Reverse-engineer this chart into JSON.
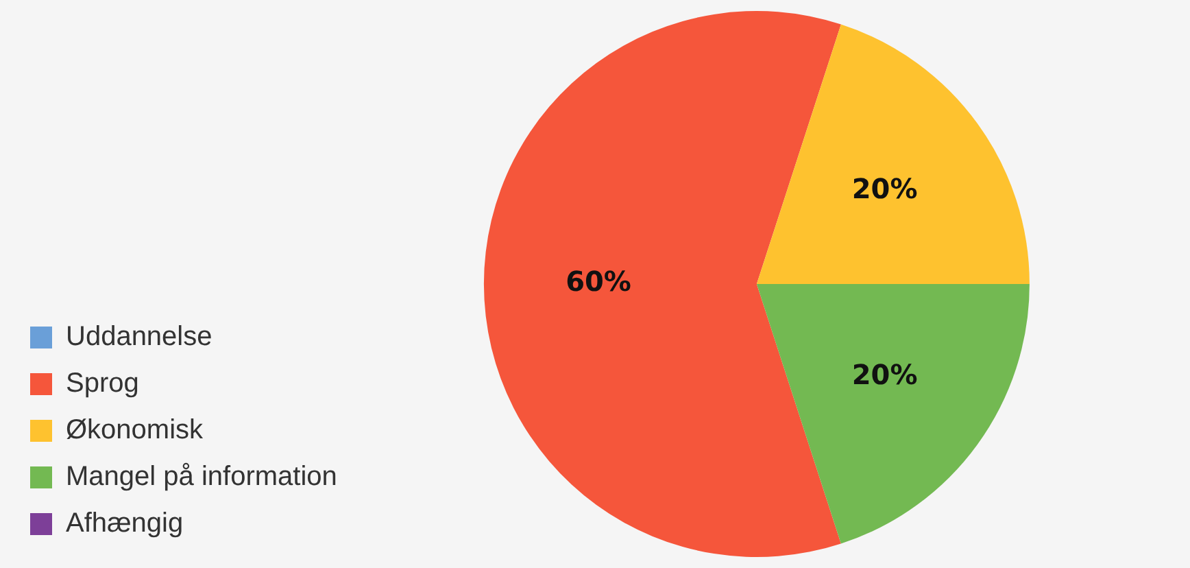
{
  "chart_data": {
    "type": "pie",
    "categories": [
      "Uddannelse",
      "Sprog",
      "Økonomisk",
      "Mangel på information",
      "Afhængig"
    ],
    "values": [
      0,
      60,
      20,
      20,
      0
    ],
    "colors": [
      "#6a9fd8",
      "#f5563b",
      "#fec22f",
      "#73b952",
      "#7d3f98"
    ],
    "value_labels": [
      null,
      "60%",
      "20%",
      "20%",
      null
    ],
    "legend": "bottom left"
  }
}
